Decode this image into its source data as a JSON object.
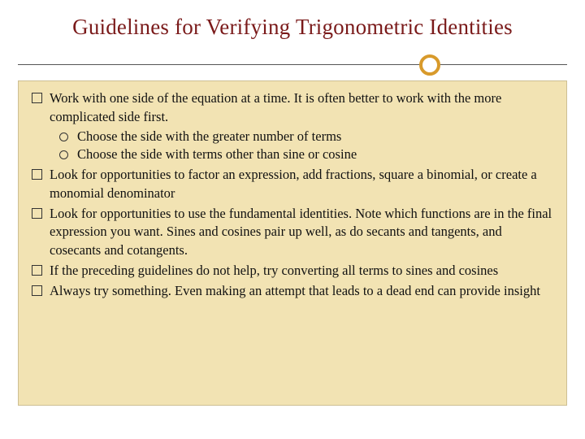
{
  "title": "Guidelines for Verifying Trigonometric Identities",
  "colors": {
    "title": "#7a1a1a",
    "contentBg": "#f2e3b3",
    "contentBorder": "#cdbf93",
    "ring": "#d89a2b",
    "divider": "#555555",
    "text": "#111111",
    "slideBg": "#ffffff"
  },
  "typography": {
    "titleFontSize": 27,
    "bodyFontSize": 16.5,
    "fontFamily": "Georgia, serif"
  },
  "bullets": {
    "b1": "Work with one side of the equation at a time.  It is often better to work with the more complicated side first.",
    "b1_sub1": "Choose the side with the greater number of terms",
    "b1_sub2": "Choose the side with terms other than sine or cosine",
    "b2": "Look for opportunities to factor an expression, add fractions, square a binomial, or create a monomial denominator",
    "b3": "Look for opportunities to use the fundamental identities.  Note which functions are in the final expression you want.  Sines and cosines pair up well, as do secants and tangents, and cosecants and cotangents.",
    "b4": "If the preceding guidelines do not help, try converting all terms to sines and cosines",
    "b5": "Always try something.  Even making an attempt that leads to a dead end can provide insight"
  }
}
